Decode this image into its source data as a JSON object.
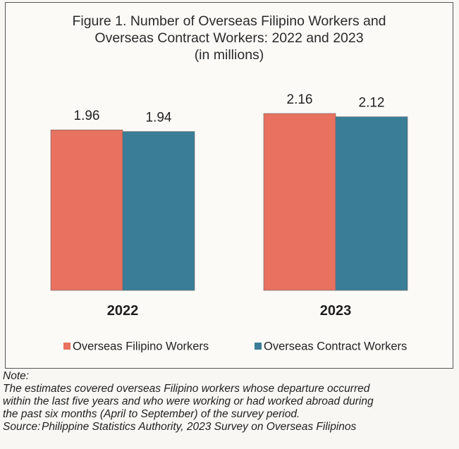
{
  "figure": {
    "title_lines": [
      "Figure 1. Number of Overseas Filipino Workers and",
      "Overseas Contract Workers: 2022 and 2023",
      "(in millions)"
    ]
  },
  "chart_data": {
    "type": "bar",
    "title": "Figure 1. Number of Overseas Filipino Workers and Overseas Contract Workers: 2022 and 2023 (in millions)",
    "categories": [
      "2022",
      "2023"
    ],
    "series": [
      {
        "name": "Overseas Filipino Workers",
        "values": [
          1.96,
          2.16
        ],
        "labels": [
          "1.96",
          "2.16"
        ],
        "color": "#e8715f"
      },
      {
        "name": "Overseas Contract Workers",
        "values": [
          1.94,
          2.12
        ],
        "labels": [
          "1.94",
          "2.12"
        ],
        "color": "#3a7d96"
      }
    ],
    "ylim": [
      0,
      2.16
    ],
    "grid": false,
    "legend_position": "bottom"
  },
  "note": {
    "label": "Note:",
    "lines": [
      "The estimates covered overseas Filipino workers whose departure occurred",
      "within the last five years and who were working or had worked abroad during",
      "the past six months (April to September) of the survey period."
    ],
    "source_label": "Source:",
    "source_text": "Philippine Statistics Authority, 2023 Survey on Overseas Filipinos"
  }
}
